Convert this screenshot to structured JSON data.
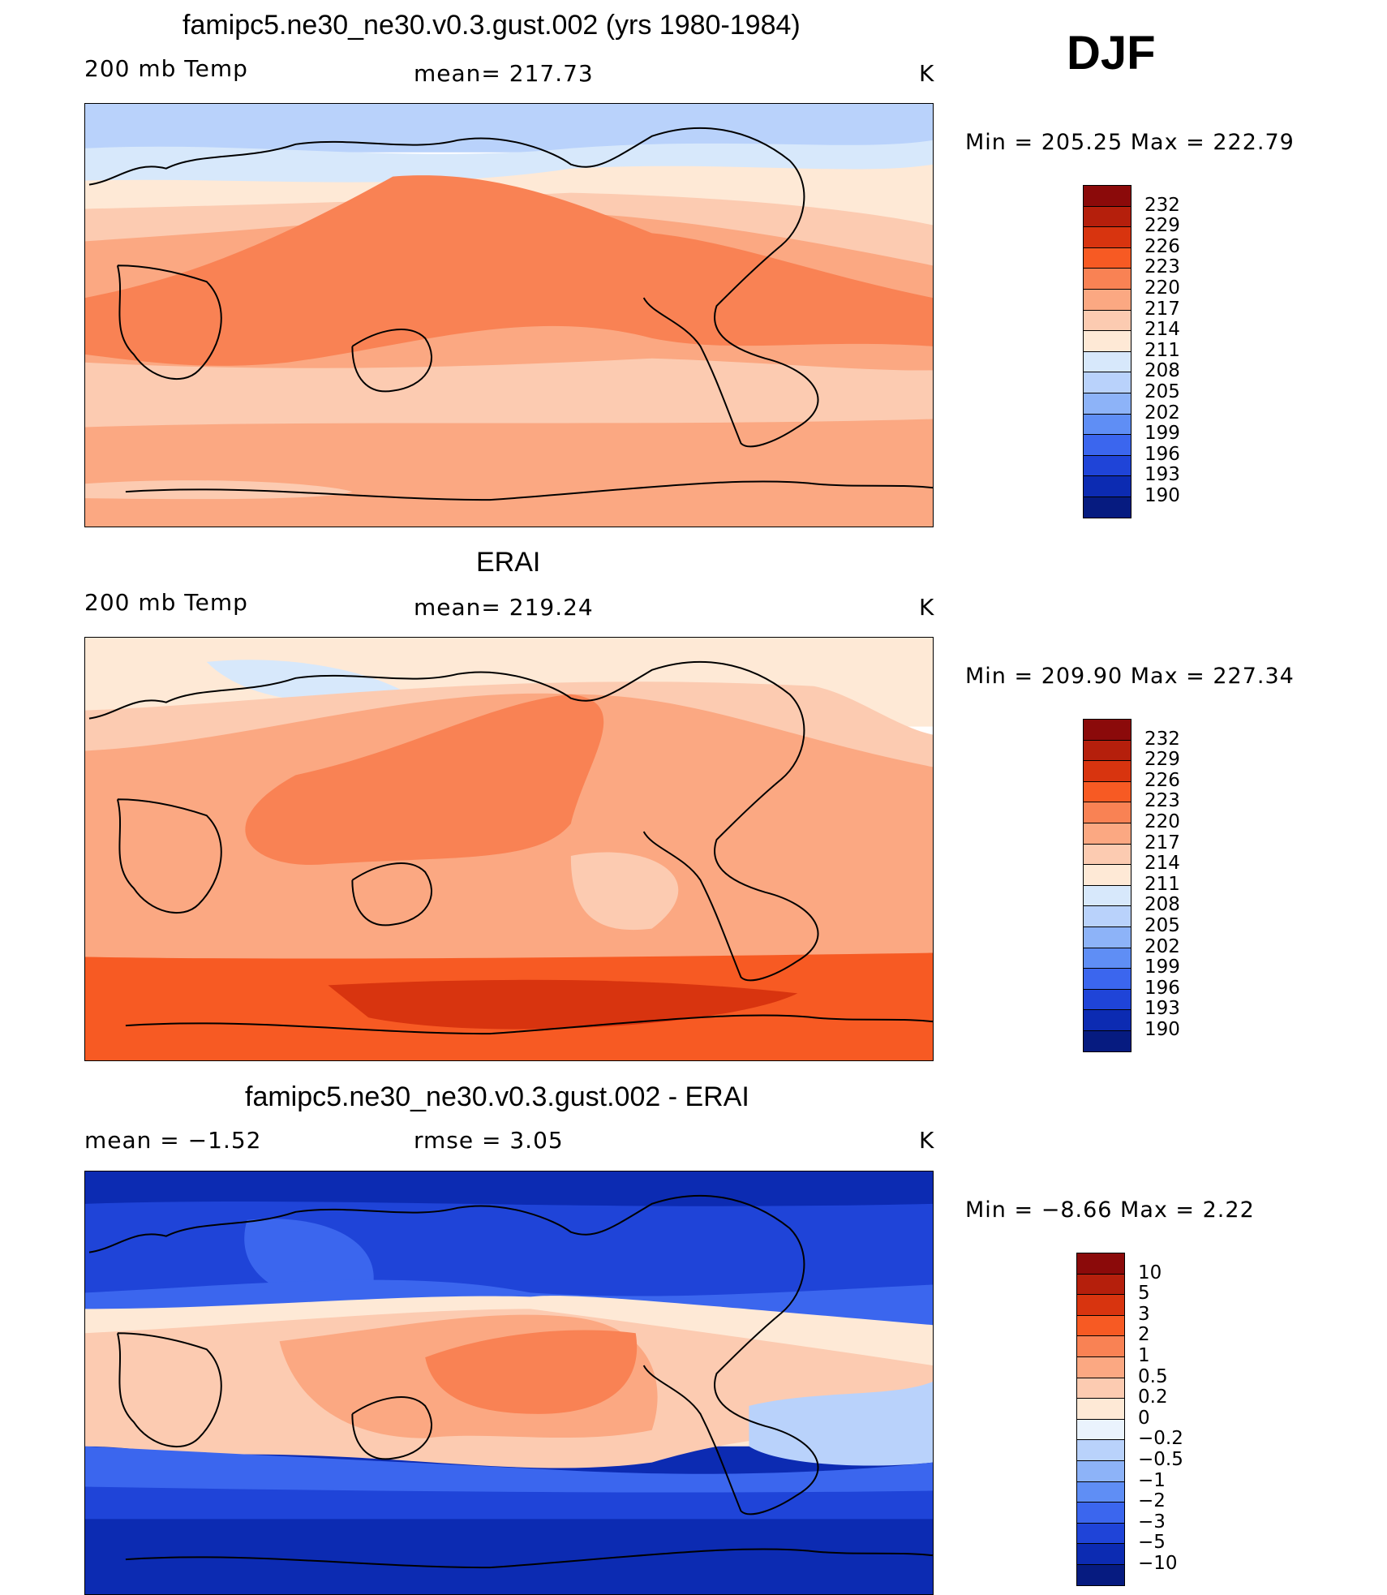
{
  "season": "DJF",
  "panels": [
    {
      "title": "famipc5.ne30_ne30.v0.3.gust.002 (yrs 1980-1984)",
      "left_label": "200 mb Temp",
      "center_label": "mean=  217.73",
      "units": "K",
      "minmax": "Min  =  205.25  Max  =  222.79",
      "colorbar_labels": [
        "232",
        "229",
        "226",
        "223",
        "220",
        "217",
        "214",
        "211",
        "208",
        "205",
        "202",
        "199",
        "196",
        "193",
        "190"
      ],
      "colorbar_colors": [
        "#8b0a0a",
        "#b51f0c",
        "#d8340f",
        "#f75a23",
        "#f98254",
        "#fba882",
        "#fccbb1",
        "#fee9d6",
        "#d7e8fb",
        "#b9d2fb",
        "#8db3f8",
        "#5f8ef5",
        "#3b66ee",
        "#1f44d8",
        "#0c2bb2",
        "#061b80"
      ],
      "map_colors": [
        "#b9d2fb",
        "#d7e8fb",
        "#fee9d6",
        "#fccbb1",
        "#fba882",
        "#f98254",
        "#f98254",
        "#fba882",
        "#fccbb1",
        "#fba882"
      ]
    },
    {
      "title": "ERAI",
      "left_label": "200 mb Temp",
      "center_label": "mean=  219.24",
      "units": "K",
      "minmax": "Min  =  209.90  Max  =  227.34",
      "colorbar_labels": [
        "232",
        "229",
        "226",
        "223",
        "220",
        "217",
        "214",
        "211",
        "208",
        "205",
        "202",
        "199",
        "196",
        "193",
        "190"
      ],
      "colorbar_colors": [
        "#8b0a0a",
        "#b51f0c",
        "#d8340f",
        "#f75a23",
        "#f98254",
        "#fba882",
        "#fccbb1",
        "#fee9d6",
        "#d7e8fb",
        "#b9d2fb",
        "#8db3f8",
        "#5f8ef5",
        "#3b66ee",
        "#1f44d8",
        "#0c2bb2",
        "#061b80"
      ],
      "map_colors": [
        "#fee9d6",
        "#fccbb1",
        "#fba882",
        "#f98254",
        "#fba882",
        "#fccbb1",
        "#f75a23",
        "#d8340f",
        "#f75a23"
      ]
    },
    {
      "title": "famipc5.ne30_ne30.v0.3.gust.002 - ERAI",
      "left_label": "mean =    −1.52",
      "center_label": "rmse =      3.05",
      "units": "K",
      "minmax": "Min  =    −8.66  Max  =      2.22",
      "colorbar_labels": [
        "10",
        "5",
        "3",
        "2",
        "1",
        "0.5",
        "0.2",
        "0",
        "−0.2",
        "−0.5",
        "−1",
        "−2",
        "−3",
        "−5",
        "−10"
      ],
      "colorbar_colors": [
        "#8b0a0a",
        "#b51f0c",
        "#d8340f",
        "#f75a23",
        "#f98254",
        "#fba882",
        "#fccbb1",
        "#fee9d6",
        "#eaf3fd",
        "#b9d2fb",
        "#8db3f8",
        "#5f8ef5",
        "#3b66ee",
        "#1f44d8",
        "#0c2bb2",
        "#061b80"
      ],
      "map_colors": [
        "#0c2bb2",
        "#1f44d8",
        "#3b66ee",
        "#fccbb1",
        "#fba882",
        "#f98254",
        "#fba882",
        "#b9d2fb",
        "#3b66ee",
        "#1f44d8",
        "#0c2bb2"
      ]
    }
  ]
}
